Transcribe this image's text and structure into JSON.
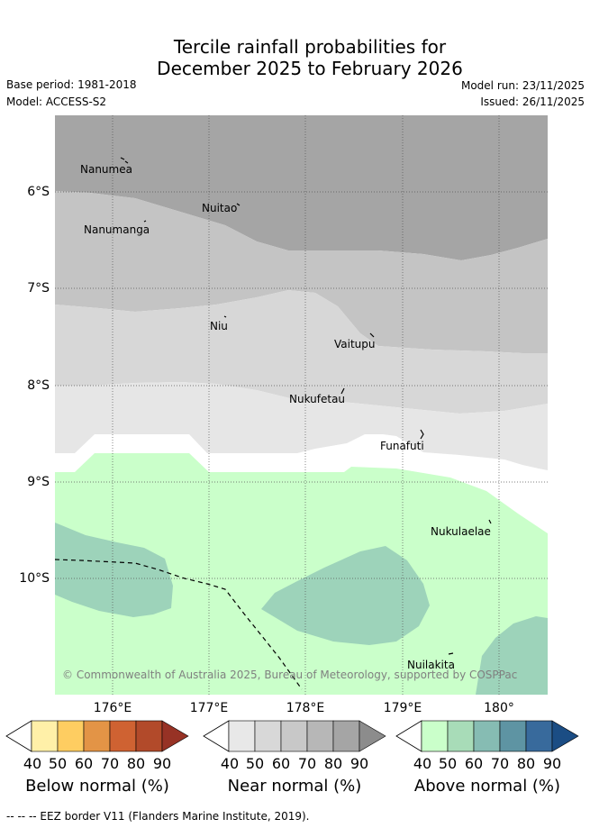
{
  "title": {
    "line1": "Tercile rainfall probabilities for",
    "line2": "December 2025 to February 2026"
  },
  "meta": {
    "base_period": "Base period: 1981-2018",
    "model": "Model: ACCESS-S2",
    "model_run": "Model run: 23/11/2025",
    "issued": "Issued: 26/11/2025"
  },
  "map": {
    "lon_labels": [
      "176°E",
      "177°E",
      "178°E",
      "179°E",
      "180°"
    ],
    "lat_labels": [
      "6°S",
      "7°S",
      "8°S",
      "9°S",
      "10°S"
    ],
    "islands": [
      {
        "name": "Nanumea"
      },
      {
        "name": "Nuitao"
      },
      {
        "name": "Nanumanga"
      },
      {
        "name": "Niu"
      },
      {
        "name": "Vaitupu"
      },
      {
        "name": "Nukufetau"
      },
      {
        "name": "Funafuti"
      },
      {
        "name": "Nukulaelae"
      },
      {
        "name": "Nuilakita"
      }
    ],
    "copyright": "© Commonwealth of Australia 2025, Bureau of Meteorology, supported by COSPPac"
  },
  "legend": {
    "ticks": [
      "40",
      "50",
      "60",
      "70",
      "80",
      "90"
    ],
    "below": {
      "title": "Below normal (%)",
      "colors": [
        "#fff0a8",
        "#fecd61",
        "#e39446",
        "#cf6232",
        "#b24a2a",
        "#973225"
      ]
    },
    "near": {
      "title": "Near normal (%)",
      "colors": [
        "#e8e8e8",
        "#d8d8d8",
        "#c8c8c8",
        "#b7b7b7",
        "#a5a5a5",
        "#8c8c8c"
      ]
    },
    "above": {
      "title": "Above normal (%)",
      "colors": [
        "#caffca",
        "#a8dcb8",
        "#86bcb3",
        "#5e94a3",
        "#386a9c",
        "#1b4d84"
      ]
    }
  },
  "footer": "--  --  -- EEZ border V11 (Flanders Marine Institute, 2019)."
}
